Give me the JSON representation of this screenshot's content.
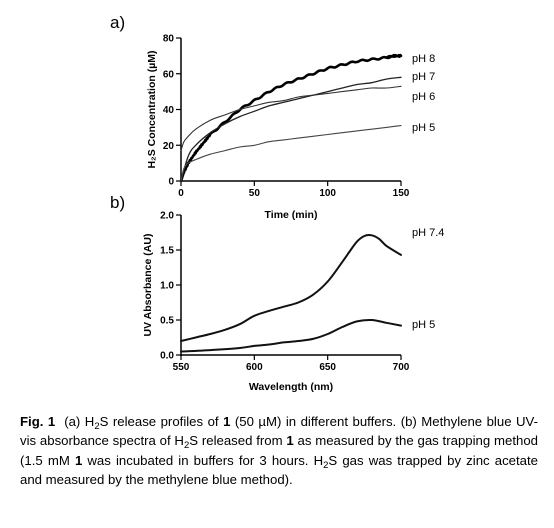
{
  "chart_data": [
    {
      "panel": "a)",
      "type": "line",
      "xlabel": "Time (min)",
      "ylabel": "H₂S Concentration (µM)",
      "xlim": [
        0,
        150
      ],
      "ylim": [
        0,
        80
      ],
      "xticks": [
        0,
        50,
        100,
        150
      ],
      "yticks": [
        0,
        20,
        40,
        60,
        80
      ],
      "grid": false,
      "series": [
        {
          "name": "pH 8",
          "style": "thick-noisy",
          "x": [
            0,
            2,
            5,
            10,
            15,
            20,
            30,
            40,
            50,
            60,
            70,
            80,
            90,
            100,
            110,
            120,
            130,
            140,
            145,
            150
          ],
          "y": [
            0,
            5,
            10,
            16,
            21,
            26,
            33,
            40,
            45,
            50,
            54,
            57,
            60,
            63,
            65,
            67,
            68,
            69,
            70,
            70
          ]
        },
        {
          "name": "pH 7",
          "x": [
            0,
            5,
            10,
            20,
            30,
            40,
            50,
            60,
            70,
            80,
            90,
            100,
            110,
            120,
            130,
            140,
            150
          ],
          "y": [
            0,
            14,
            20,
            27,
            32,
            36,
            39,
            42,
            44,
            46,
            48,
            50,
            52,
            54,
            55,
            57,
            58
          ]
        },
        {
          "name": "pH 6",
          "x": [
            0,
            2,
            5,
            10,
            20,
            30,
            40,
            50,
            60,
            70,
            80,
            90,
            100,
            110,
            120,
            130,
            140,
            150
          ],
          "y": [
            17,
            22,
            25,
            29,
            34,
            37,
            40,
            42,
            44,
            45,
            47,
            48,
            49,
            50,
            51,
            52,
            52,
            53
          ]
        },
        {
          "name": "pH 5",
          "x": [
            0,
            2,
            5,
            10,
            20,
            30,
            40,
            50,
            60,
            70,
            80,
            90,
            100,
            110,
            120,
            130,
            140,
            150
          ],
          "y": [
            0,
            7,
            10,
            12,
            15,
            17,
            19,
            20,
            22,
            23,
            24,
            25,
            26,
            27,
            28,
            29,
            30,
            31
          ]
        }
      ]
    },
    {
      "panel": "b)",
      "type": "line",
      "xlabel": "Wavelength (nm)",
      "ylabel": "UV Absorbance (AU)",
      "xlim": [
        550,
        700
      ],
      "ylim": [
        0,
        2.0
      ],
      "xticks": [
        550,
        600,
        650,
        700
      ],
      "yticks": [
        "0.0",
        "0.5",
        "1.0",
        "1.5",
        "2.0"
      ],
      "grid": false,
      "series": [
        {
          "name": "pH 7.4",
          "x": [
            550,
            560,
            570,
            580,
            590,
            600,
            610,
            620,
            630,
            640,
            650,
            660,
            665,
            670,
            675,
            680,
            685,
            690,
            700
          ],
          "y": [
            0.2,
            0.25,
            0.3,
            0.36,
            0.44,
            0.56,
            0.63,
            0.69,
            0.75,
            0.86,
            1.05,
            1.33,
            1.48,
            1.62,
            1.7,
            1.71,
            1.66,
            1.56,
            1.43
          ]
        },
        {
          "name": "pH 5",
          "x": [
            550,
            570,
            590,
            600,
            610,
            620,
            630,
            640,
            650,
            660,
            670,
            680,
            690,
            700
          ],
          "y": [
            0.05,
            0.07,
            0.1,
            0.13,
            0.15,
            0.18,
            0.2,
            0.23,
            0.3,
            0.4,
            0.48,
            0.5,
            0.46,
            0.42
          ]
        }
      ]
    }
  ],
  "caption": {
    "label": "Fig. 1",
    "parts": [
      {
        "t": "  (a) H"
      },
      {
        "sub": "2"
      },
      {
        "t": "S release profiles of "
      },
      {
        "b": "1"
      },
      {
        "t": " (50 µM) in different buffers. (b) Methylene blue UV-vis absorbance spectra of H"
      },
      {
        "sub": "2"
      },
      {
        "t": "S released from "
      },
      {
        "b": "1"
      },
      {
        "t": " as measured by the gas trapping method (1.5 mM "
      },
      {
        "b": "1"
      },
      {
        "t": " was incubated in buffers for 3 hours. H"
      },
      {
        "sub": "2"
      },
      {
        "t": "S gas was trapped by zinc acetate and measured by the methylene blue method)."
      }
    ]
  }
}
